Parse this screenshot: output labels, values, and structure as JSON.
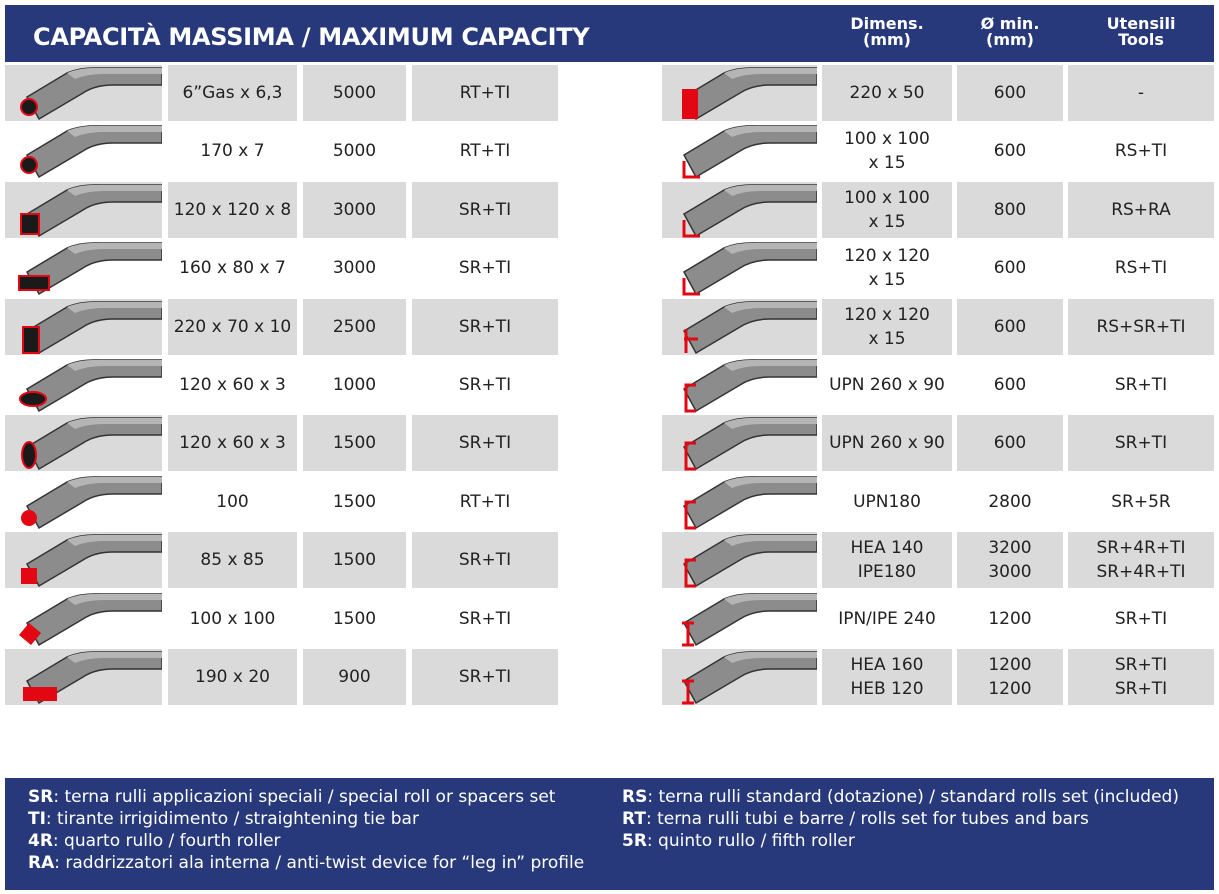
{
  "header": {
    "title": "CAPACITÀ MASSIMA / MAXIMUM CAPACITY",
    "columns": [
      [
        "Dimens.",
        "(mm)"
      ],
      [
        "Ø min.",
        "(mm)"
      ],
      [
        "Utensili",
        "Tools"
      ]
    ]
  },
  "left_table": {
    "rows": [
      [
        "6”Gas x 6,3",
        "5000",
        "RT+TI"
      ],
      [
        "170 x 7",
        "5000",
        "RT+TI"
      ],
      [
        "120 x 120 x 8",
        "3000",
        "SR+TI"
      ],
      [
        "160 x 80 x 7",
        "3000",
        "SR+TI"
      ],
      [
        "220 x 70 x 10",
        "2500",
        "SR+TI"
      ],
      [
        "120 x 60 x 3",
        "1000",
        "SR+TI"
      ],
      [
        "120 x 60 x 3",
        "1500",
        "SR+TI"
      ],
      [
        "100",
        "1500",
        "RT+TI"
      ],
      [
        "85 x 85",
        "1500",
        "SR+TI"
      ],
      [
        "100 x 100",
        "1500",
        "SR+TI"
      ],
      [
        "190 x 20",
        "900",
        "SR+TI"
      ]
    ]
  },
  "right_table": {
    "rows": [
      [
        "220 x 50",
        "600",
        "-"
      ],
      [
        [
          "100 x 100",
          "x 15"
        ],
        "600",
        "RS+TI"
      ],
      [
        [
          "100 x 100",
          "x 15"
        ],
        "800",
        "RS+RA"
      ],
      [
        [
          "120 x 120",
          "x 15"
        ],
        "600",
        "RS+TI"
      ],
      [
        [
          "120 x 120",
          "x 15"
        ],
        "600",
        "RS+SR+TI"
      ],
      [
        "UPN 260 x 90",
        "600",
        "SR+TI"
      ],
      [
        "UPN 260 x 90",
        "600",
        "SR+TI"
      ],
      [
        "UPN180",
        "2800",
        "SR+5R"
      ],
      [
        [
          "HEA 140",
          "IPE180"
        ],
        [
          "3200",
          "3000"
        ],
        [
          "SR+4R+TI",
          "SR+4R+TI"
        ]
      ],
      [
        "IPN/IPE 240",
        "1200",
        "SR+TI"
      ],
      [
        [
          "HEA 160",
          "HEB  120"
        ],
        [
          "1200",
          "1200"
        ],
        [
          "SR+TI",
          "SR+TI"
        ]
      ]
    ]
  },
  "legend": {
    "left": [
      {
        "code": "SR",
        "text": ": terna rulli applicazioni speciali / special roll or spacers set"
      },
      {
        "code": "TI",
        "text": ": tirante irrigidimento / straightening tie bar"
      },
      {
        "code": "4R",
        "text": ": quarto rullo / fourth roller"
      },
      {
        "code": "RA",
        "text": ": raddrizzatori ala interna / anti-twist device for “leg in” profile"
      }
    ],
    "right": [
      {
        "code": "RS",
        "text": ": terna rulli standard (dotazione) / standard rolls set (included)"
      },
      {
        "code": "RT",
        "text": ": terna rulli tubi e barre / rolls set for tubes and bars"
      },
      {
        "code": "5R",
        "text": ": quinto rullo / fifth roller"
      }
    ]
  }
}
